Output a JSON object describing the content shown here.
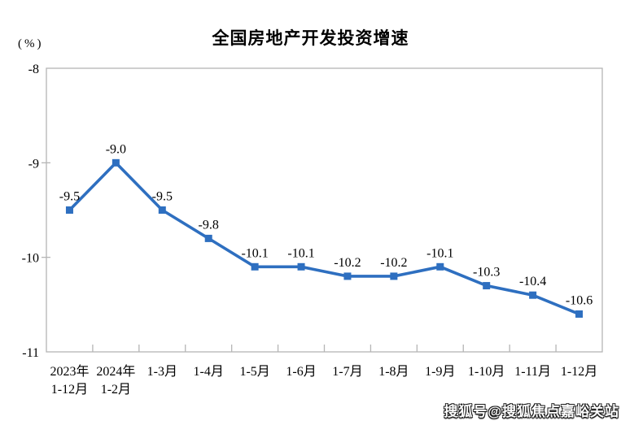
{
  "page": {
    "watermark": "搜狐号@搜狐焦点嘉峪关站"
  },
  "chart_data": {
    "type": "line",
    "title": "全国房地产开发投资增速",
    "y_unit_label": "(%)",
    "categories": [
      [
        "2023年",
        "1-12月"
      ],
      [
        "2024年",
        "1-2月"
      ],
      [
        "1-3月"
      ],
      [
        "1-4月"
      ],
      [
        "1-5月"
      ],
      [
        "1-6月"
      ],
      [
        "1-7月"
      ],
      [
        "1-8月"
      ],
      [
        "1-9月"
      ],
      [
        "1-10月"
      ],
      [
        "1-11月"
      ],
      [
        "1-12月"
      ]
    ],
    "values": [
      -9.5,
      -9.0,
      -9.5,
      -9.8,
      -10.1,
      -10.1,
      -10.2,
      -10.2,
      -10.1,
      -10.3,
      -10.4,
      -10.6
    ],
    "ylim": [
      -11,
      -8
    ],
    "yticks": [
      -8,
      -9,
      -10,
      -11
    ],
    "grid": false,
    "legend": "none",
    "marker": "square",
    "label_decimals": 1,
    "line_color": "#2E6FC0",
    "axis_color": "#B5B5B5",
    "text_color": "#000000"
  }
}
